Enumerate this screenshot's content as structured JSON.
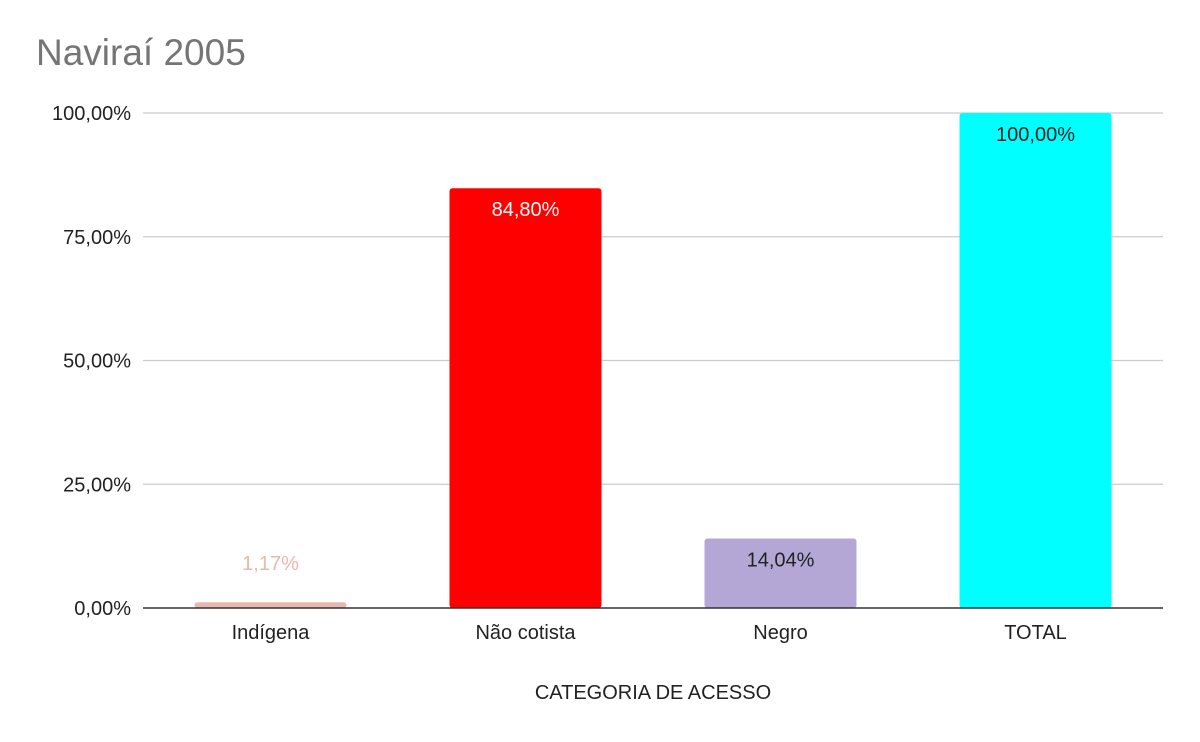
{
  "chart_data": {
    "type": "bar",
    "title": "Naviraí 2005",
    "xlabel": "CATEGORIA DE ACESSO",
    "ylabel": "",
    "ylim": [
      0,
      100
    ],
    "yticks": [
      0,
      25,
      50,
      75,
      100
    ],
    "ytick_labels": [
      "0,00%",
      "25,00%",
      "50,00%",
      "75,00%",
      "100,00%"
    ],
    "grid": true,
    "categories": [
      "Indígena",
      "Não cotista",
      "Negro",
      "TOTAL"
    ],
    "values": [
      1.17,
      84.8,
      14.04,
      100.0
    ],
    "value_labels": [
      "1,17%",
      "84,80%",
      "14,04%",
      "100,00%"
    ],
    "colors": [
      "#e6b8af",
      "#ff0000",
      "#b4a7d6",
      "#00ffff"
    ],
    "label_colors": [
      "#e6b8af",
      "#ffffff",
      "#222222",
      "#222222"
    ]
  }
}
